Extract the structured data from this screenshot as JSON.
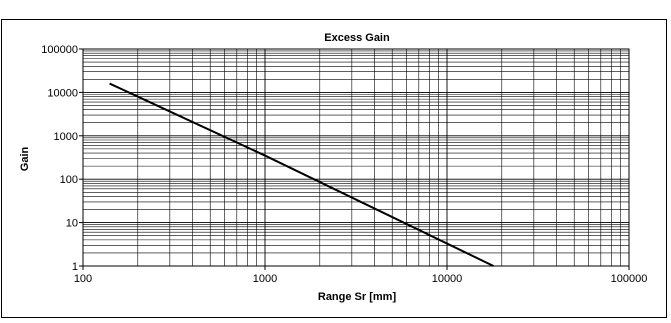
{
  "chart_data": {
    "type": "line",
    "title": "Excess Gain",
    "xlabel": "Range Sr [mm]",
    "ylabel": "Gain",
    "x_scale": "log",
    "y_scale": "log",
    "xlim": [
      100,
      100000
    ],
    "ylim": [
      1,
      100000
    ],
    "x_ticks": [
      "100",
      "1000",
      "10000",
      "100000"
    ],
    "y_ticks": [
      "1",
      "10",
      "100",
      "1000",
      "10000",
      "100000"
    ],
    "grid": true,
    "legend": "none",
    "series": [
      {
        "x": [
          140,
          1000,
          18000
        ],
        "y": [
          16000,
          350,
          1
        ],
        "color": "#000000"
      }
    ]
  }
}
